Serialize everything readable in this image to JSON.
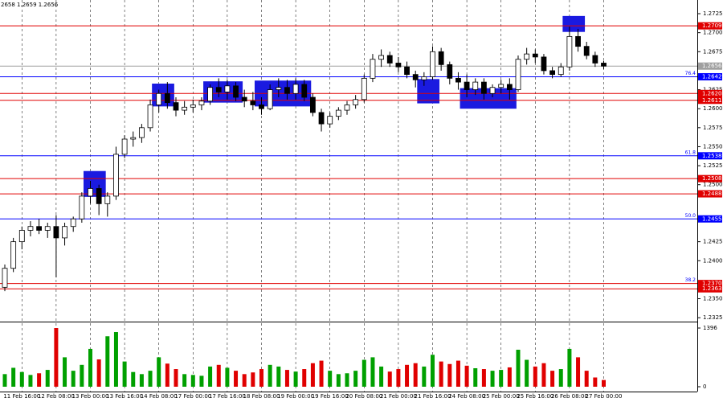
{
  "chart_data": {
    "type": "candlestick",
    "info_text": "2658 1.2659 1.2656",
    "categories": [
      null,
      null,
      "11 Feb 16:00",
      null,
      null,
      null,
      "12 Feb 08:00",
      null,
      null,
      null,
      "13 Feb 00:00",
      null,
      null,
      null,
      "13 Feb 16:00",
      null,
      null,
      null,
      "14 Feb 08:00",
      null,
      null,
      null,
      "17 Feb 00:00",
      null,
      null,
      null,
      "17 Feb 16:00",
      null,
      null,
      null,
      "18 Feb 08:00",
      null,
      null,
      null,
      "19 Feb 00:00",
      null,
      null,
      null,
      "19 Feb 16:00",
      null,
      null,
      null,
      "20 Feb 08:00",
      null,
      null,
      null,
      "21 Feb 00:00",
      null,
      null,
      null,
      "21 Feb 16:00",
      null,
      null,
      null,
      "24 Feb 08:00",
      null,
      null,
      null,
      "25 Feb 00:00",
      null,
      null,
      null,
      "25 Feb 16:00",
      null,
      null,
      null,
      "26 Feb 08:00",
      null,
      null,
      null,
      "27 Feb 00:00"
    ],
    "open": [
      1.2365,
      1.239,
      1.2425,
      1.244,
      1.2445,
      1.244,
      1.2445,
      1.243,
      1.2445,
      1.2455,
      1.2485,
      1.2495,
      1.2475,
      1.2485,
      1.254,
      1.256,
      1.2562,
      1.2575,
      1.2605,
      1.262,
      1.2608,
      1.2598,
      1.2602,
      1.2605,
      1.261,
      1.2628,
      1.2622,
      1.263,
      1.2615,
      1.261,
      1.2605,
      1.26,
      1.2625,
      1.2628,
      1.262,
      1.2632,
      1.2615,
      1.2595,
      1.258,
      1.259,
      1.2598,
      1.2605,
      1.2612,
      1.264,
      1.2665,
      1.267,
      1.266,
      1.2655,
      1.2645,
      1.2638,
      1.2642,
      1.2675,
      1.2658,
      1.264,
      1.2635,
      1.2625,
      1.2635,
      1.262,
      1.2628,
      1.2632,
      1.2625,
      1.2665,
      1.2672,
      1.2668,
      1.265,
      1.2645,
      1.2655,
      1.2695,
      1.2682,
      1.267,
      1.266
    ],
    "high": [
      1.2395,
      1.243,
      1.2445,
      1.2452,
      1.2455,
      1.245,
      1.246,
      1.245,
      1.2458,
      1.249,
      1.2505,
      1.25,
      1.249,
      1.255,
      1.2565,
      1.257,
      1.258,
      1.2612,
      1.2625,
      1.2635,
      1.2615,
      1.261,
      1.2612,
      1.2615,
      1.2632,
      1.264,
      1.2638,
      1.2635,
      1.2625,
      1.2622,
      1.2615,
      1.2632,
      1.264,
      1.2638,
      1.264,
      1.2638,
      1.262,
      1.26,
      1.2595,
      1.2602,
      1.261,
      1.2618,
      1.2645,
      1.2672,
      1.2678,
      1.2675,
      1.2668,
      1.2662,
      1.265,
      1.2648,
      1.2682,
      1.268,
      1.2662,
      1.2648,
      1.2645,
      1.264,
      1.264,
      1.2632,
      1.2638,
      1.264,
      1.267,
      1.268,
      1.2678,
      1.2672,
      1.2655,
      1.266,
      1.2708,
      1.2705,
      1.2688,
      1.2675,
      1.2663
    ],
    "low": [
      1.236,
      1.2385,
      1.2415,
      1.2432,
      1.2435,
      1.243,
      1.2378,
      1.242,
      1.2438,
      1.245,
      1.2475,
      1.246,
      1.2458,
      1.248,
      1.2535,
      1.255,
      1.2555,
      1.257,
      1.2595,
      1.26,
      1.259,
      1.2592,
      1.2595,
      1.2598,
      1.2605,
      1.2615,
      1.2612,
      1.261,
      1.2602,
      1.2598,
      1.2592,
      1.2598,
      1.2615,
      1.2612,
      1.2612,
      1.261,
      1.259,
      1.257,
      1.2575,
      1.2585,
      1.2592,
      1.26,
      1.2608,
      1.2635,
      1.2655,
      1.2655,
      1.2648,
      1.264,
      1.2628,
      1.263,
      1.2638,
      1.265,
      1.2632,
      1.2625,
      1.2615,
      1.2618,
      1.2612,
      1.2615,
      1.262,
      1.2612,
      1.2622,
      1.2658,
      1.266,
      1.2645,
      1.264,
      1.2642,
      1.265,
      1.2675,
      1.2665,
      1.2655,
      1.2652
    ],
    "close": [
      1.239,
      1.2425,
      1.244,
      1.2445,
      1.244,
      1.2445,
      1.243,
      1.2445,
      1.2455,
      1.2485,
      1.2495,
      1.2475,
      1.2485,
      1.254,
      1.256,
      1.2562,
      1.2575,
      1.2605,
      1.262,
      1.2608,
      1.2598,
      1.2602,
      1.2605,
      1.261,
      1.2628,
      1.2622,
      1.263,
      1.2615,
      1.261,
      1.2605,
      1.26,
      1.2625,
      1.2628,
      1.262,
      1.2632,
      1.2615,
      1.2595,
      1.258,
      1.259,
      1.2598,
      1.2605,
      1.2612,
      1.264,
      1.2665,
      1.267,
      1.266,
      1.2655,
      1.2645,
      1.2638,
      1.2642,
      1.2675,
      1.2658,
      1.264,
      1.2635,
      1.2625,
      1.2635,
      1.262,
      1.2628,
      1.2632,
      1.2625,
      1.2665,
      1.2672,
      1.2668,
      1.265,
      1.2645,
      1.2655,
      1.2695,
      1.2682,
      1.267,
      1.266,
      1.2656
    ],
    "volume": [
      300,
      450,
      350,
      280,
      320,
      400,
      1396,
      700,
      380,
      520,
      900,
      650,
      1200,
      1300,
      600,
      350,
      300,
      380,
      700,
      550,
      420,
      300,
      280,
      260,
      480,
      520,
      450,
      380,
      300,
      340,
      420,
      520,
      480,
      400,
      360,
      420,
      560,
      620,
      380,
      300,
      320,
      380,
      640,
      700,
      480,
      360,
      420,
      520,
      560,
      480,
      760,
      600,
      540,
      620,
      500,
      440,
      420,
      380,
      400,
      460,
      880,
      640,
      480,
      560,
      380,
      420,
      900,
      700,
      380,
      220,
      160
    ],
    "up_color": "#00a000",
    "down_color": "#e00000",
    "candle_color": "#000000",
    "ylim": [
      1.2322,
      1.2743
    ],
    "yticks": [
      1.2725,
      {
        "value": 1.27,
        "label": "1.2700"
      },
      1.2675,
      1.2625,
      {
        "value": 1.26,
        "label": "1.2600"
      },
      1.2575,
      {
        "value": 1.255,
        "label": "1.2550"
      },
      1.2525,
      {
        "value": 1.25,
        "label": "1.2500"
      },
      1.2425,
      {
        "value": 1.24,
        "label": "1.2400"
      },
      {
        "value": 1.235,
        "label": "1.2350"
      },
      1.2325
    ],
    "volume_lim": [
      0,
      1396
    ],
    "volume_ticks": [
      1396,
      0
    ],
    "levels": [
      {
        "value": 1.2709,
        "label": "1.2709",
        "color": "#e00000"
      },
      {
        "value": 1.2642,
        "label": "1.2642",
        "color": "#0000ff",
        "fib": "76.4"
      },
      {
        "value": 1.262,
        "label": "1.2620",
        "color": "#e00000"
      },
      {
        "value": 1.2611,
        "label": "1.2611",
        "color": "#e00000"
      },
      {
        "value": 1.2538,
        "label": "1.2538",
        "color": "#0000ff",
        "fib": "61.8"
      },
      {
        "value": 1.2508,
        "label": "1.2508",
        "color": "#e00000"
      },
      {
        "value": 1.2488,
        "label": "1.2488",
        "color": "#e00000"
      },
      {
        "value": 1.2455,
        "label": "1.2455",
        "color": "#0000ff",
        "fib": "50.0"
      },
      {
        "value": 1.237,
        "label": "1.2370",
        "color": "#e00000",
        "fib": "38.2"
      },
      {
        "value": 1.2363,
        "label": "1.2363",
        "color": "#e00000"
      }
    ],
    "last_price": {
      "value": 1.2656,
      "label": "1.2656",
      "color": "#a0a0a0"
    },
    "box_color": "#1a1ae0",
    "boxes": [
      {
        "from": 10,
        "to": 11,
        "high": 1.2518,
        "low": 1.2484
      },
      {
        "from": 18,
        "to": 19,
        "high": 1.2633,
        "low": 1.2603
      },
      {
        "from": 24,
        "to": 27,
        "high": 1.2636,
        "low": 1.2608
      },
      {
        "from": 30,
        "to": 35,
        "high": 1.2637,
        "low": 1.2603
      },
      {
        "from": 49,
        "to": 50,
        "high": 1.2639,
        "low": 1.2607
      },
      {
        "from": 54,
        "to": 59,
        "high": 1.2627,
        "low": 1.26
      },
      {
        "from": 66,
        "to": 67,
        "high": 1.2722,
        "low": 1.2701
      }
    ]
  }
}
